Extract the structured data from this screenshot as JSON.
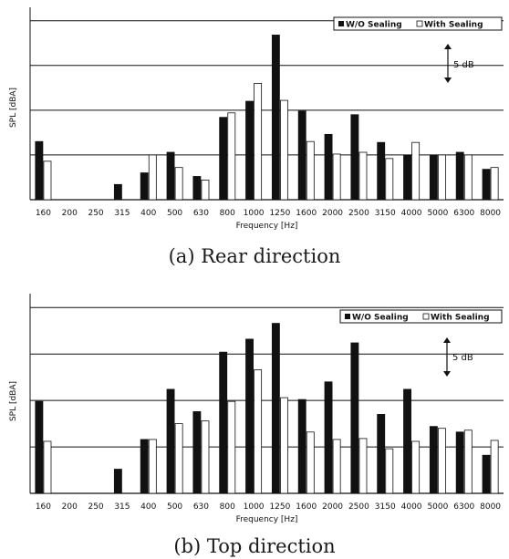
{
  "colors": {
    "wo_sealing": "#111111",
    "with_sealing": "#ffffff",
    "outline": "#111111"
  },
  "chart_data": [
    {
      "type": "bar",
      "caption": "(a)  Rear direction",
      "xlabel": "Frequency [Hz]",
      "ylabel": "SPL [dBA]",
      "scale_bar_label": "5 dB",
      "legend_position": "top-right",
      "grid": true,
      "ylim": [
        0,
        21.5
      ],
      "gridlines": [
        5,
        10,
        15,
        20
      ],
      "categories": [
        "160",
        "200",
        "250",
        "315",
        "400",
        "500",
        "630",
        "800",
        "1000",
        "1250",
        "1600",
        "2000",
        "2500",
        "3150",
        "4000",
        "5000",
        "6300",
        "8000"
      ],
      "series": [
        {
          "name": "W/O Sealing",
          "values": [
            6.5,
            null,
            null,
            1.7,
            3.0,
            5.3,
            2.6,
            9.2,
            11.0,
            18.4,
            9.9,
            7.3,
            9.5,
            6.4,
            5.0,
            5.0,
            5.3,
            3.4
          ]
        },
        {
          "name": "With Sealing",
          "values": [
            4.3,
            null,
            null,
            null,
            5.0,
            3.6,
            2.2,
            9.7,
            13.0,
            11.1,
            6.5,
            5.1,
            5.3,
            4.6,
            6.4,
            5.0,
            5.0,
            3.6
          ]
        }
      ]
    },
    {
      "type": "bar",
      "caption": "(b)  Top direction",
      "xlabel": "Frequency [Hz]",
      "ylabel": "SPL [dBA]",
      "scale_bar_label": "5 dB",
      "legend_position": "top-right",
      "grid": true,
      "ylim": [
        0,
        21.5
      ],
      "gridlines": [
        5,
        10,
        15,
        20
      ],
      "categories": [
        "160",
        "200",
        "250",
        "315",
        "400",
        "500",
        "630",
        "800",
        "1000",
        "1250",
        "1600",
        "2000",
        "2500",
        "3150",
        "4000",
        "5000",
        "6300",
        "8000"
      ],
      "series": [
        {
          "name": "W/O Sealing",
          "values": [
            9.9,
            null,
            null,
            2.6,
            5.8,
            11.2,
            8.8,
            15.2,
            16.6,
            18.3,
            10.1,
            12.0,
            16.2,
            8.5,
            11.2,
            7.2,
            6.6,
            4.1
          ]
        },
        {
          "name": "With Sealing",
          "values": [
            5.6,
            null,
            null,
            null,
            5.8,
            7.5,
            7.8,
            9.9,
            13.3,
            10.3,
            6.6,
            5.8,
            5.9,
            4.8,
            5.6,
            7.0,
            6.8,
            5.7
          ]
        }
      ]
    }
  ]
}
